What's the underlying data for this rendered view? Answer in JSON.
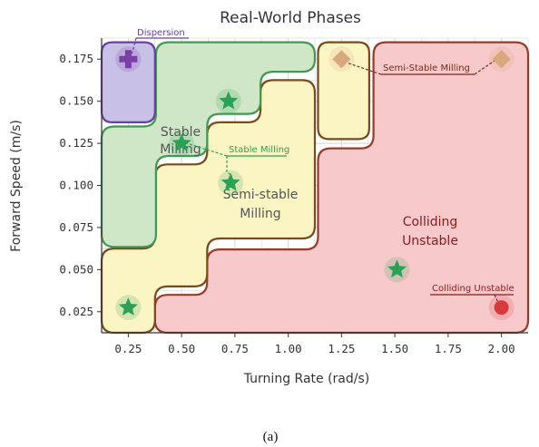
{
  "chart_data": {
    "type": "scatter",
    "title": "Real-World Phases",
    "xlabel": "Turning Rate (rad/s)",
    "ylabel": "Forward Speed (m/s)",
    "xlim": [
      0.125,
      2.125
    ],
    "ylim": [
      0.0125,
      0.1875
    ],
    "x_ticks": [
      "0.25",
      "0.50",
      "0.75",
      "1.00",
      "1.25",
      "1.50",
      "1.75",
      "2.00"
    ],
    "y_ticks": [
      "0.025",
      "0.050",
      "0.075",
      "0.100",
      "0.125",
      "0.150",
      "0.175"
    ],
    "grid": true,
    "regions": [
      {
        "name": "Colliding Unstable",
        "label": [
          "Colliding",
          "Unstable"
        ],
        "fill": "#f7c9cb",
        "stroke": "#9a3b28",
        "text_color": "#8a1a1a"
      },
      {
        "name": "Semi-stable Milling",
        "label": [
          "Semi-stable",
          "Milling"
        ],
        "fill": "#fbf5c4",
        "stroke": "#7a4a1c",
        "text_color": "#555555"
      },
      {
        "name": "Stable Milling",
        "label": [
          "Stable",
          "Milling"
        ],
        "fill": "#cfe6c7",
        "stroke": "#3f9a52",
        "text_color": "#555555"
      },
      {
        "name": "Dispersion",
        "label": [],
        "fill": "#c8c0e6",
        "stroke": "#6a3ea3",
        "text_color": "#6a3ea3"
      }
    ],
    "points": [
      {
        "x": 0.25,
        "y": 0.175,
        "marker": "plus",
        "color": "#7b3fa8",
        "phase": "Dispersion"
      },
      {
        "x": 0.25,
        "y": 0.0275,
        "marker": "star",
        "color": "#2aa155",
        "phase": "Semi-stable Milling"
      },
      {
        "x": 0.5,
        "y": 0.125,
        "marker": "star",
        "color": "#2aa155",
        "phase": "Stable Milling"
      },
      {
        "x": 0.72,
        "y": 0.15,
        "marker": "star",
        "color": "#2aa155",
        "phase": "Stable Milling"
      },
      {
        "x": 0.73,
        "y": 0.1015,
        "marker": "star",
        "color": "#2aa155",
        "phase": "Semi-stable Milling"
      },
      {
        "x": 1.25,
        "y": 0.175,
        "marker": "diamond",
        "color": "#d8a77c",
        "phase": "Semi-Stable Milling"
      },
      {
        "x": 2.0,
        "y": 0.175,
        "marker": "diamond",
        "color": "#d8a77c",
        "phase": "Semi-Stable Milling"
      },
      {
        "x": 1.51,
        "y": 0.05,
        "marker": "star",
        "color": "#2aa155",
        "phase": "Colliding Unstable"
      },
      {
        "x": 2.0,
        "y": 0.0275,
        "marker": "circle",
        "color": "#d63a3a",
        "phase": "Colliding Unstable"
      }
    ],
    "annotations": [
      {
        "text": "Dispersion",
        "color": "#6a3ea3"
      },
      {
        "text": "Stable Milling",
        "color": "#2aa155"
      },
      {
        "text": "Semi-Stable Milling",
        "color": "#7a2a1a"
      },
      {
        "text": "Colliding Unstable",
        "color": "#8a1a1a"
      }
    ]
  },
  "caption": "(a)"
}
